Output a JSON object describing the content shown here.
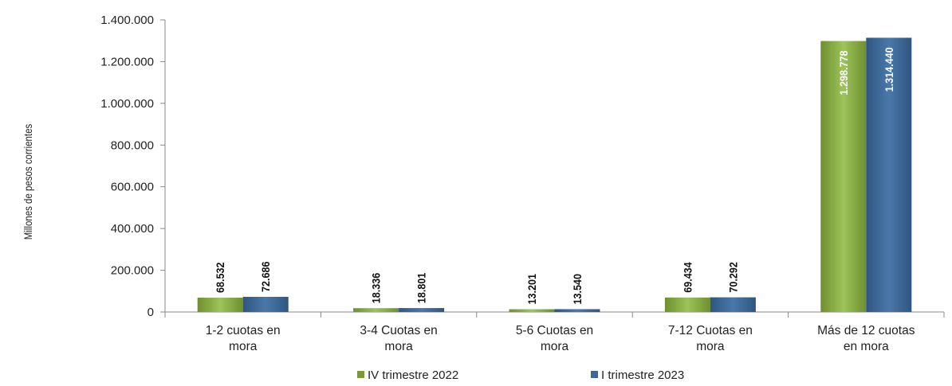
{
  "chart_data": {
    "type": "bar",
    "title": "",
    "xlabel": "",
    "ylabel": "Millones de pesos corrientes",
    "ylim": [
      0,
      1400000
    ],
    "yticks": [
      0,
      200000,
      400000,
      600000,
      800000,
      1000000,
      1200000,
      1400000
    ],
    "ytick_labels": [
      "0",
      "200.000",
      "400.000",
      "600.000",
      "800.000",
      "1.000.000",
      "1.200.000",
      "1.400.000"
    ],
    "categories": [
      [
        "1-2 cuotas en",
        "mora"
      ],
      [
        "3-4 Cuotas en",
        "mora"
      ],
      [
        "5-6 Cuotas en",
        "mora"
      ],
      [
        "7-12 Cuotas en",
        "mora"
      ],
      [
        "Más de 12 cuotas",
        "en mora"
      ]
    ],
    "series": [
      {
        "name": "IV trimestre 2022",
        "color": "#7A9A3A",
        "values": [
          68532,
          18336,
          13201,
          69434,
          1298778
        ],
        "labels": [
          "68.532",
          "18.336",
          "13.201",
          "69.434",
          "1.298.778"
        ]
      },
      {
        "name": "I trimestre 2023",
        "color": "#3E6797",
        "values": [
          72686,
          18801,
          13540,
          70292,
          1314440
        ],
        "labels": [
          "72.686",
          "18.801",
          "13.540",
          "70.292",
          "1.314.440"
        ]
      }
    ],
    "grid": false,
    "legend": "bottom-center"
  }
}
